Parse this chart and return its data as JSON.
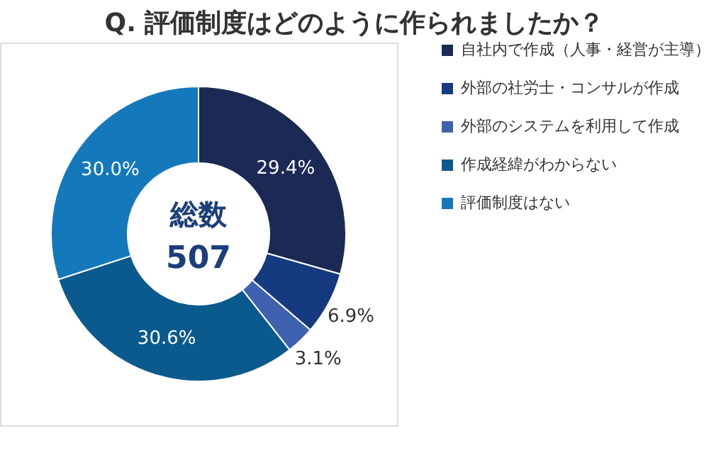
{
  "chart_data": {
    "type": "donut",
    "title": "Q. 評価制度はどのように作られましたか？",
    "categories": [
      "自社内で作成（人事・経営が主導）",
      "外部の社労士・コンサルが作成",
      "外部のシステムを利用して作成",
      "作成経緯がわからない",
      "評価制度はない"
    ],
    "values": [
      29.4,
      6.9,
      3.1,
      30.6,
      30.0
    ],
    "colors": [
      "#1b2a55",
      "#163a80",
      "#3f62b0",
      "#0b5a8e",
      "#1479bb"
    ],
    "value_labels": [
      "29.4%",
      "6.9%",
      "3.1%",
      "30.6%",
      "30.0%"
    ],
    "annotations": [
      "総数",
      "507"
    ],
    "legend": "right"
  }
}
